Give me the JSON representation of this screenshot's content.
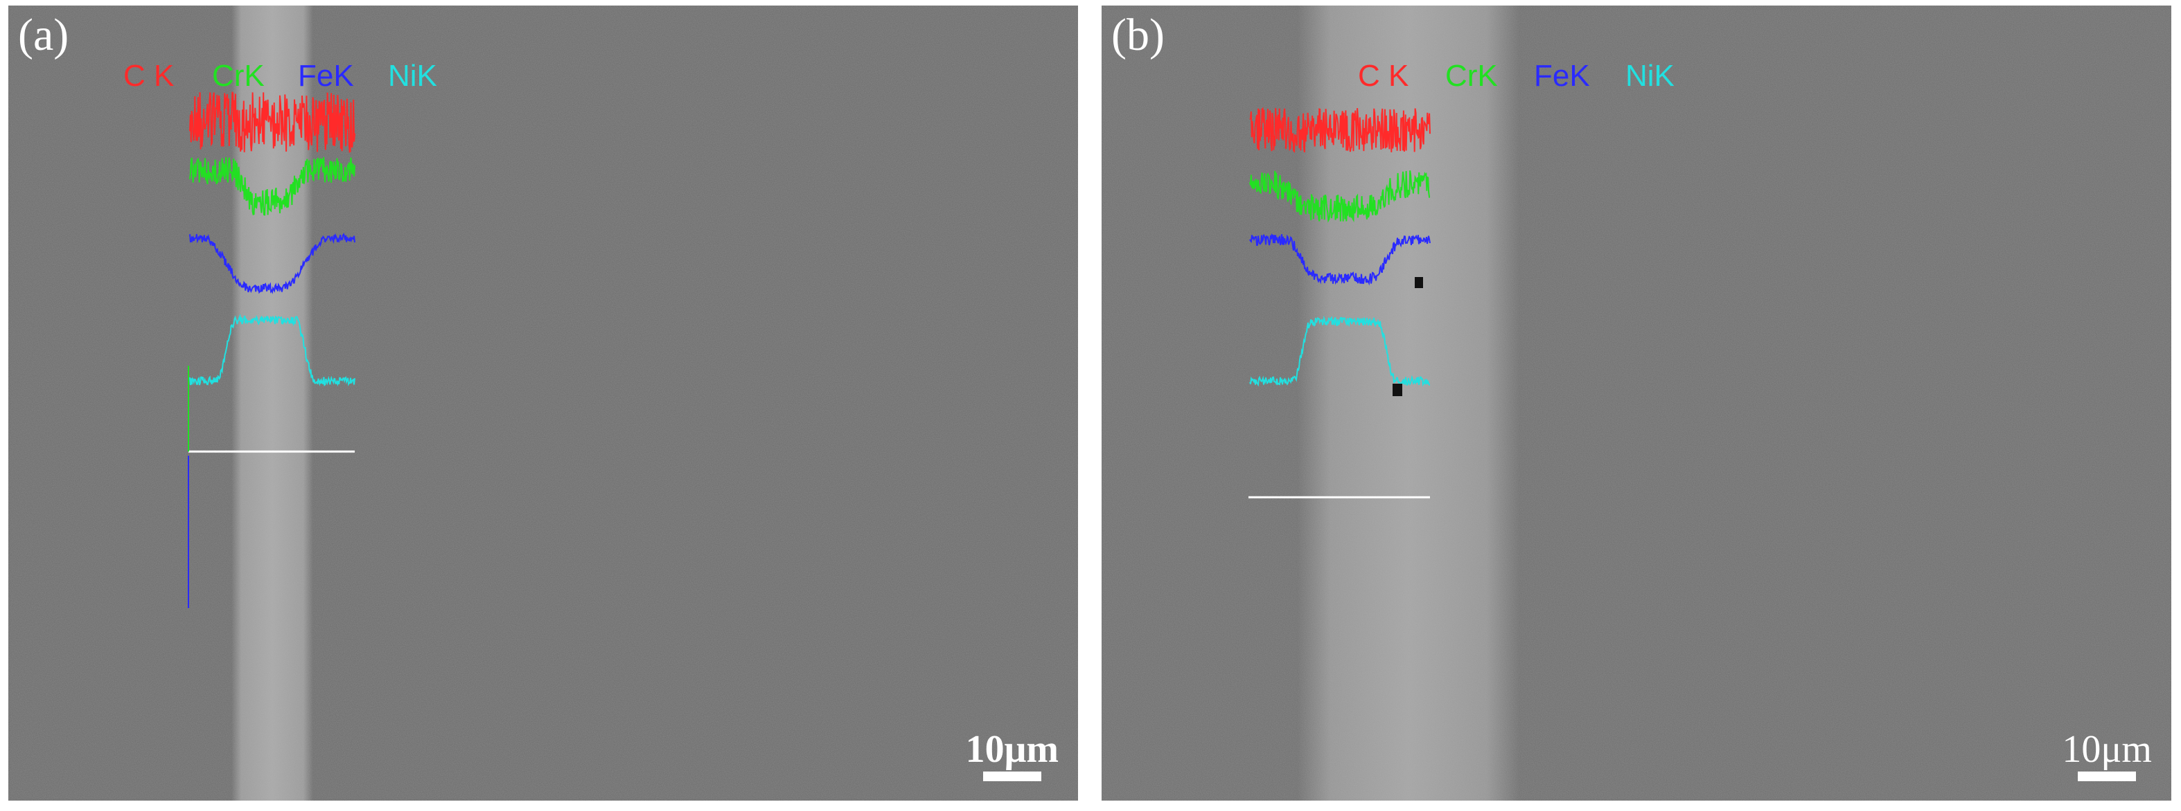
{
  "figure": {
    "panels": [
      {
        "id": "a",
        "letter": "(a)",
        "scale_label": "10μm",
        "element_labels": [
          "C K",
          "CrK",
          "FeK",
          "NiK"
        ],
        "band": {
          "from": 0.42,
          "to": 0.58
        }
      },
      {
        "id": "b",
        "letter": "(b)",
        "scale_label": "10μm",
        "element_labels": [
          "C K",
          "CrK",
          "FeK",
          "NiK"
        ],
        "band": {
          "from": 0.33,
          "to": 0.7
        }
      }
    ],
    "colors": {
      "C": "#ff2a2a",
      "Cr": "#22e022",
      "Fe": "#2a2aff",
      "Ni": "#22e0e0",
      "baseline": "#ffffff"
    }
  }
}
